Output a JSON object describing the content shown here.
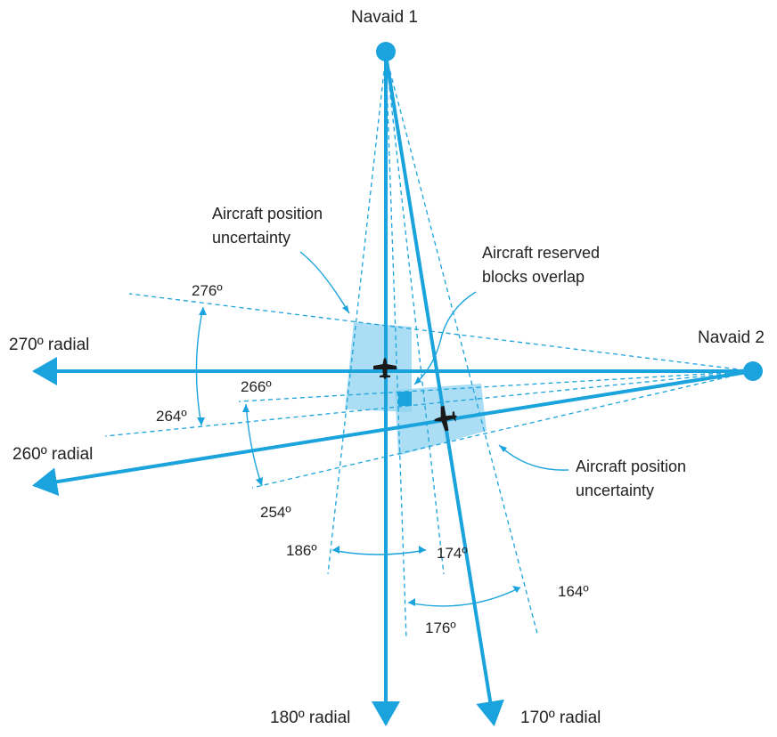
{
  "navaids": {
    "navaid_1": "Navaid 1",
    "navaid_2": "Navaid 2"
  },
  "radials": {
    "r270": "270º radial",
    "r260": "260º radial",
    "r180": "180º radial",
    "r170": "170º radial"
  },
  "angles": {
    "a276": "276º",
    "a264": "264º",
    "a266": "266º",
    "a254": "254º",
    "a186": "186º",
    "a174": "174º",
    "a176": "176º",
    "a164": "164º"
  },
  "annotations": {
    "uncertainty_1_line1": "Aircraft position",
    "uncertainty_1_line2": "uncertainty",
    "overlap_line1": "Aircraft reserved",
    "overlap_line2": "blocks overlap",
    "uncertainty_2_line1": "Aircraft position",
    "uncertainty_2_line2": "uncertainty"
  },
  "colors": {
    "line": "#1aa3dc",
    "zone": "#8fd3f0",
    "overlap": "#1aa3dc",
    "aircraft": "#1a1a1a"
  }
}
